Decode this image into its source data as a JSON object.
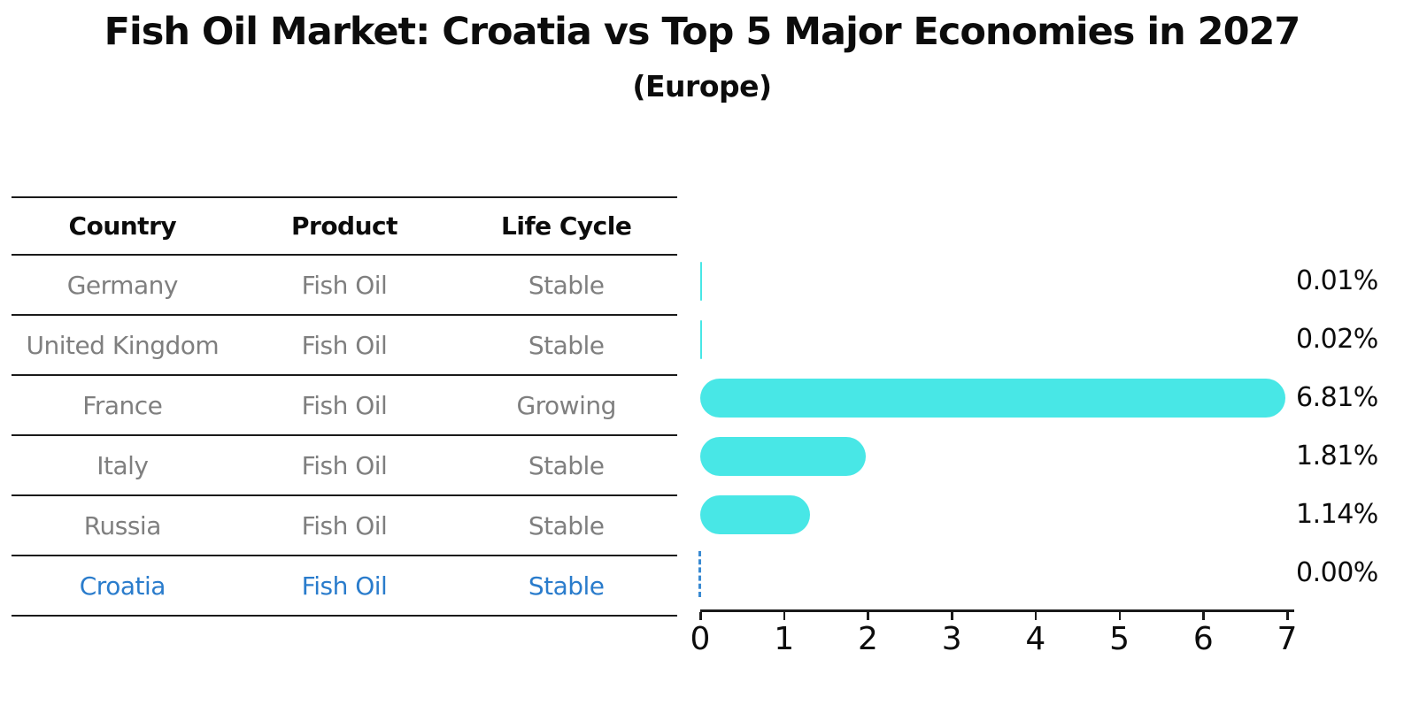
{
  "title": "Fish Oil Market: Croatia vs Top 5 Major Economies in 2027",
  "subtitle": "(Europe)",
  "table": {
    "headers": [
      "Country",
      "Product",
      "Life Cycle"
    ],
    "rows": [
      {
        "country": "Germany",
        "product": "Fish Oil",
        "life_cycle": "Stable",
        "highlight": false
      },
      {
        "country": "United Kingdom",
        "product": "Fish Oil",
        "life_cycle": "Stable",
        "highlight": false
      },
      {
        "country": "France",
        "product": "Fish Oil",
        "life_cycle": "Growing",
        "highlight": false
      },
      {
        "country": "Italy",
        "product": "Fish Oil",
        "life_cycle": "Stable",
        "highlight": false
      },
      {
        "country": "Russia",
        "product": "Fish Oil",
        "life_cycle": "Stable",
        "highlight": false
      },
      {
        "country": "Croatia",
        "product": "Fish Oil",
        "life_cycle": "Stable",
        "highlight": true
      }
    ]
  },
  "chart_data": {
    "type": "bar",
    "orientation": "horizontal",
    "title": "Fish Oil Market: Croatia vs Top 5 Major Economies in 2027",
    "subtitle": "(Europe)",
    "categories": [
      "Germany",
      "United Kingdom",
      "France",
      "Italy",
      "Russia",
      "Croatia"
    ],
    "values": [
      0.01,
      0.02,
      6.81,
      1.81,
      1.14,
      0.0
    ],
    "value_labels": [
      "0.01%",
      "0.02%",
      "6.81%",
      "1.81%",
      "1.14%",
      "0.00%"
    ],
    "xlim": [
      0,
      7
    ],
    "x_ticks": [
      "0",
      "1",
      "2",
      "3",
      "4",
      "5",
      "6",
      "7"
    ],
    "grid": false,
    "legend": false,
    "bar_color": "#48e7e6",
    "highlight_color": "#2a7ccc",
    "zero_value_marker": "dashed-line"
  },
  "colors": {
    "bar": "#48e7e6",
    "highlight_blue": "#2a7ccc",
    "row_text": "#7f7f7f",
    "heading_text": "#0c0c0c",
    "line": "#1a1a1a",
    "background": "#ffffff"
  }
}
